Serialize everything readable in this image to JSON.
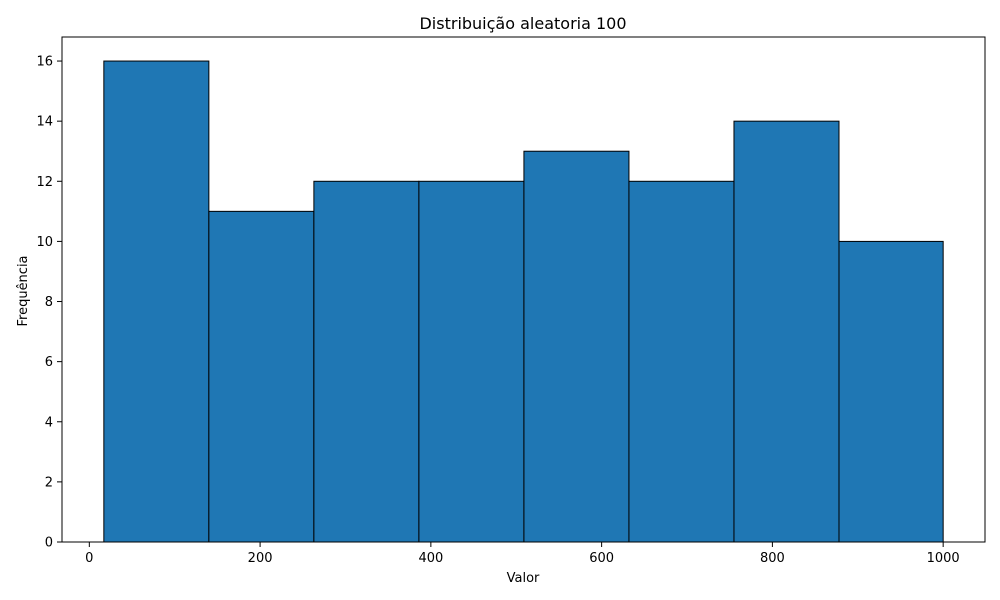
{
  "chart_data": {
    "type": "bar",
    "title": "Distribuição aleatoria 100",
    "xlabel": "Valor",
    "ylabel": "Frequência",
    "bins": [
      {
        "start": 17,
        "end": 140,
        "count": 16
      },
      {
        "start": 140,
        "end": 263,
        "count": 11
      },
      {
        "start": 263,
        "end": 386,
        "count": 12
      },
      {
        "start": 386,
        "end": 509,
        "count": 12
      },
      {
        "start": 509,
        "end": 632,
        "count": 13
      },
      {
        "start": 632,
        "end": 755,
        "count": 12
      },
      {
        "start": 755,
        "end": 878,
        "count": 14
      },
      {
        "start": 878,
        "end": 1000,
        "count": 10
      }
    ],
    "xlim": [
      -32,
      1049
    ],
    "ylim": [
      0,
      16.8
    ],
    "x_ticks": [
      0,
      200,
      400,
      600,
      800,
      1000
    ],
    "y_ticks": [
      0,
      2,
      4,
      6,
      8,
      10,
      12,
      14,
      16
    ],
    "grid": false,
    "bar_color": "#1f77b4",
    "edge_color": "#000000"
  }
}
